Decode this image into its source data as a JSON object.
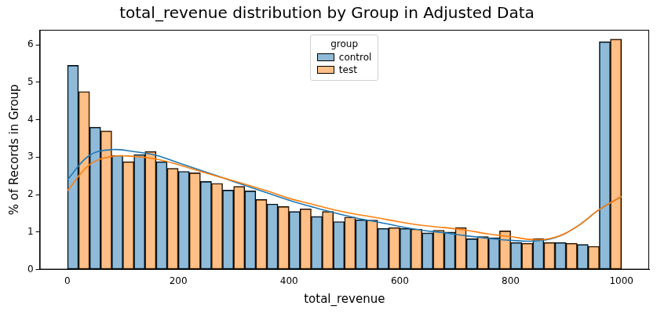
{
  "chart_data": {
    "type": "histogram",
    "title": "total_revenue distribution by Group in Adjusted Data",
    "x_label": "total_revenue",
    "y_label": "% of Records in Group",
    "bins": [
      0,
      40,
      80,
      120,
      160,
      200,
      240,
      280,
      320,
      360,
      400,
      440,
      480,
      520,
      560,
      600,
      640,
      680,
      720,
      760,
      800,
      840,
      880,
      920,
      960,
      1000
    ],
    "series": [
      {
        "name": "control",
        "color": "#1f77b4",
        "values": [
          5.45,
          3.8,
          3.05,
          3.07,
          2.88,
          2.62,
          2.35,
          2.12,
          2.1,
          1.75,
          1.55,
          1.42,
          1.28,
          1.33,
          1.1,
          1.1,
          0.98,
          1.0,
          0.82,
          0.85,
          0.72,
          0.82,
          0.72,
          0.67,
          6.08
        ],
        "kde": [
          2.4,
          3.05,
          3.2,
          3.15,
          3.05,
          2.85,
          2.65,
          2.45,
          2.25,
          2.05,
          1.85,
          1.68,
          1.52,
          1.38,
          1.27,
          1.15,
          1.05,
          0.98,
          0.9,
          0.83,
          0.78,
          0.76,
          0.85,
          1.15,
          1.6,
          1.95
        ]
      },
      {
        "name": "test",
        "color": "#ff7f0e",
        "values": [
          4.75,
          3.7,
          2.88,
          3.15,
          2.7,
          2.58,
          2.3,
          2.22,
          1.87,
          1.68,
          1.62,
          1.55,
          1.4,
          1.32,
          1.12,
          1.08,
          1.05,
          1.12,
          0.88,
          1.03,
          0.7,
          0.72,
          0.7,
          0.62,
          6.15
        ],
        "kde": [
          2.1,
          2.8,
          3.02,
          3.02,
          2.95,
          2.8,
          2.62,
          2.45,
          2.28,
          2.1,
          1.9,
          1.75,
          1.6,
          1.48,
          1.38,
          1.27,
          1.18,
          1.12,
          1.05,
          0.95,
          0.88,
          0.8,
          0.86,
          1.15,
          1.6,
          1.95
        ]
      }
    ],
    "xlim": [
      -50,
      1050
    ],
    "xticks": [
      0,
      200,
      400,
      600,
      800,
      1000
    ],
    "ylim": [
      0,
      6.4
    ],
    "yticks": [
      0,
      1,
      2,
      3,
      4,
      5,
      6
    ],
    "grid": false,
    "legend": "upper center",
    "legend_title": "group"
  }
}
